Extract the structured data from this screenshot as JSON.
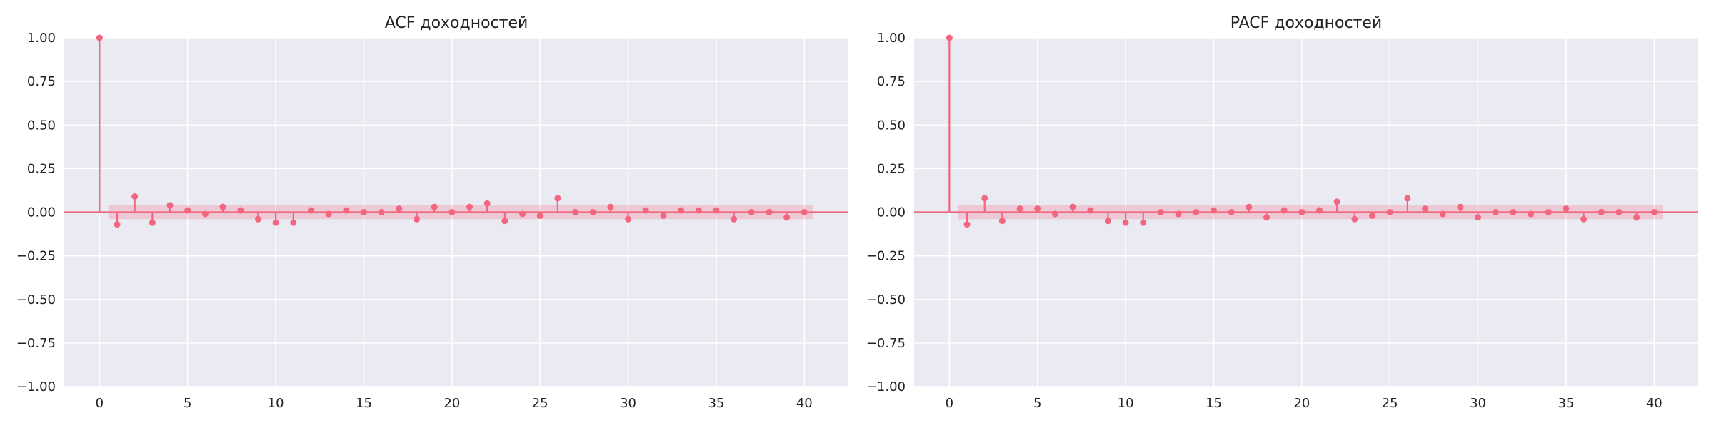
{
  "chart_data": [
    {
      "type": "stem",
      "title": "ACF доходностей",
      "xlabel": "",
      "ylabel": "",
      "xlim": [
        -2,
        42.5
      ],
      "ylim": [
        -1.0,
        1.0
      ],
      "x_ticks": [
        0,
        5,
        10,
        15,
        20,
        25,
        30,
        35,
        40
      ],
      "x_tick_labels": [
        "0",
        "5",
        "10",
        "15",
        "20",
        "25",
        "30",
        "35",
        "40"
      ],
      "y_ticks": [
        1.0,
        0.75,
        0.5,
        0.25,
        0.0,
        -0.25,
        -0.5,
        -0.75,
        -1.0
      ],
      "y_tick_labels": [
        "1.00",
        "0.75",
        "0.50",
        "0.25",
        "0.00",
        "−0.25",
        "−0.50",
        "−0.75",
        "−1.00"
      ],
      "grid": true,
      "lags": [
        0,
        1,
        2,
        3,
        4,
        5,
        6,
        7,
        8,
        9,
        10,
        11,
        12,
        13,
        14,
        15,
        16,
        17,
        18,
        19,
        20,
        21,
        22,
        23,
        24,
        25,
        26,
        27,
        28,
        29,
        30,
        31,
        32,
        33,
        34,
        35,
        36,
        37,
        38,
        39,
        40
      ],
      "values": [
        1.0,
        -0.07,
        0.09,
        -0.06,
        0.04,
        0.01,
        -0.01,
        0.03,
        0.01,
        -0.04,
        -0.06,
        -0.06,
        0.01,
        -0.01,
        0.01,
        0.0,
        0.0,
        0.02,
        -0.04,
        0.03,
        0.0,
        0.03,
        0.05,
        -0.05,
        -0.01,
        -0.02,
        0.08,
        0.0,
        0.0,
        0.03,
        -0.04,
        0.01,
        -0.02,
        0.01,
        0.01,
        0.01,
        -0.04,
        0.0,
        0.0,
        -0.03,
        0.0
      ],
      "confidence_band": [
        -0.04,
        0.04
      ],
      "color": "#f2677f"
    },
    {
      "type": "stem",
      "title": "PACF доходностей",
      "xlabel": "",
      "ylabel": "",
      "xlim": [
        -2,
        42.5
      ],
      "ylim": [
        -1.0,
        1.0
      ],
      "x_ticks": [
        0,
        5,
        10,
        15,
        20,
        25,
        30,
        35,
        40
      ],
      "x_tick_labels": [
        "0",
        "5",
        "10",
        "15",
        "20",
        "25",
        "30",
        "35",
        "40"
      ],
      "y_ticks": [
        1.0,
        0.75,
        0.5,
        0.25,
        0.0,
        -0.25,
        -0.5,
        -0.75,
        -1.0
      ],
      "y_tick_labels": [
        "1.00",
        "0.75",
        "0.50",
        "0.25",
        "0.00",
        "−0.25",
        "−0.50",
        "−0.75",
        "−1.00"
      ],
      "grid": true,
      "lags": [
        0,
        1,
        2,
        3,
        4,
        5,
        6,
        7,
        8,
        9,
        10,
        11,
        12,
        13,
        14,
        15,
        16,
        17,
        18,
        19,
        20,
        21,
        22,
        23,
        24,
        25,
        26,
        27,
        28,
        29,
        30,
        31,
        32,
        33,
        34,
        35,
        36,
        37,
        38,
        39,
        40
      ],
      "values": [
        1.0,
        -0.07,
        0.08,
        -0.05,
        0.02,
        0.02,
        -0.01,
        0.03,
        0.01,
        -0.05,
        -0.06,
        -0.06,
        0.0,
        -0.01,
        0.0,
        0.01,
        0.0,
        0.03,
        -0.03,
        0.01,
        0.0,
        0.01,
        0.06,
        -0.04,
        -0.02,
        0.0,
        0.08,
        0.02,
        -0.01,
        0.03,
        -0.03,
        0.0,
        0.0,
        -0.01,
        0.0,
        0.02,
        -0.04,
        0.0,
        0.0,
        -0.03,
        0.0
      ],
      "confidence_band": [
        -0.04,
        0.04
      ],
      "color": "#f2677f"
    }
  ],
  "colors": {
    "plot_background": "#eaeaf2",
    "grid": "#ffffff",
    "series": "#f2677f",
    "band": "#f2677f",
    "text": "#222222"
  }
}
